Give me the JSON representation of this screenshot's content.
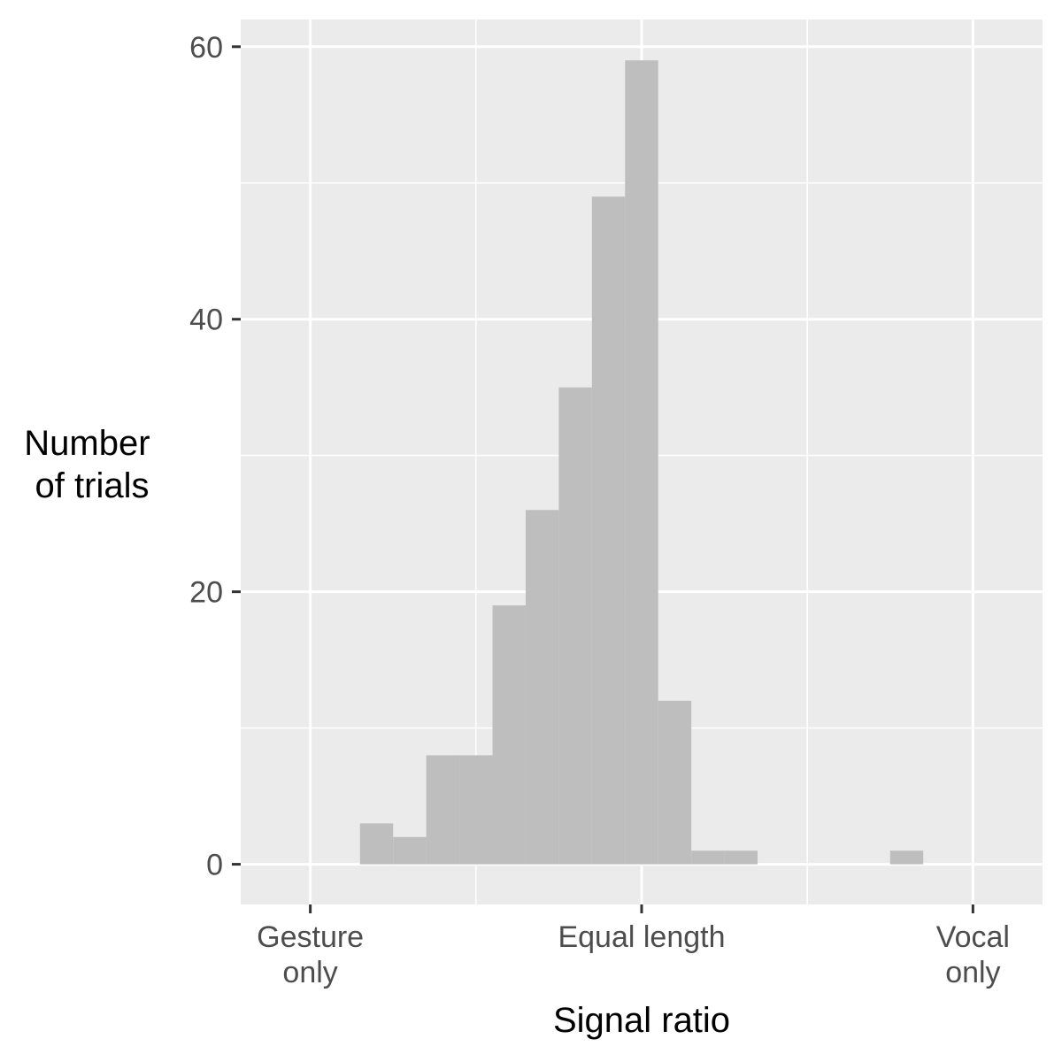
{
  "chart_data": {
    "type": "bar",
    "title": "",
    "xlabel": "Signal ratio",
    "ylabel_lines": [
      "Number",
      "of trials"
    ],
    "x_tick_labels": [
      [
        "Gesture",
        "only"
      ],
      [
        "Equal length"
      ],
      [
        "Vocal",
        "only"
      ]
    ],
    "x_ticks": [
      0,
      1,
      2
    ],
    "xlim": [
      -0.21,
      2.21
    ],
    "y_ticks": [
      0,
      20,
      40,
      60
    ],
    "ylim": [
      -2.95,
      62
    ],
    "bin_width": 0.1,
    "bins": [
      {
        "x0": 0.15,
        "x1": 0.25,
        "value": 3
      },
      {
        "x0": 0.25,
        "x1": 0.35,
        "value": 2
      },
      {
        "x0": 0.35,
        "x1": 0.45,
        "value": 8
      },
      {
        "x0": 0.45,
        "x1": 0.55,
        "value": 8
      },
      {
        "x0": 0.55,
        "x1": 0.65,
        "value": 19
      },
      {
        "x0": 0.65,
        "x1": 0.75,
        "value": 26
      },
      {
        "x0": 0.75,
        "x1": 0.85,
        "value": 35
      },
      {
        "x0": 0.85,
        "x1": 0.95,
        "value": 49
      },
      {
        "x0": 0.95,
        "x1": 1.05,
        "value": 59
      },
      {
        "x0": 1.05,
        "x1": 1.15,
        "value": 12
      },
      {
        "x0": 1.15,
        "x1": 1.25,
        "value": 1
      },
      {
        "x0": 1.25,
        "x1": 1.35,
        "value": 1
      },
      {
        "x0": 1.75,
        "x1": 1.85,
        "value": 1
      }
    ],
    "grid": true,
    "legend": "none",
    "colors": {
      "panel_background": "#ebebeb",
      "grid_line": "#ffffff",
      "bar_fill": "#bebebe",
      "tick_mark": "#333333",
      "tick_text": "#4d4d4d",
      "title_text": "#000000"
    }
  }
}
